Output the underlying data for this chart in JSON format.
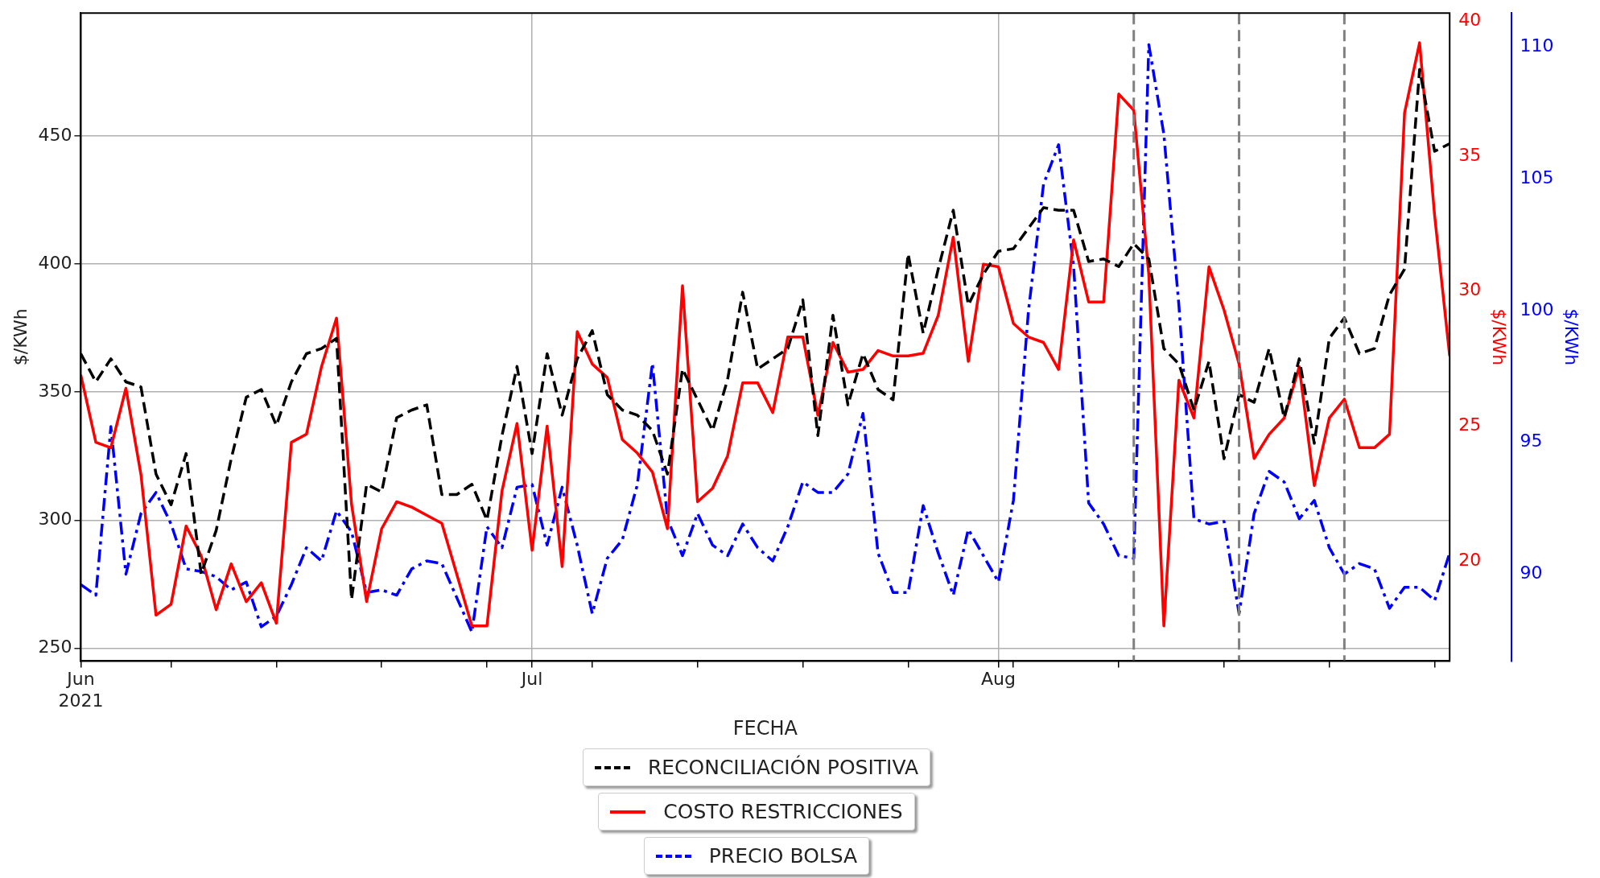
{
  "chart_data": {
    "type": "line",
    "xlabel": "FECHA",
    "ylabel": "$/KWh",
    "y2label": "$/KWh",
    "y3label": "$/KWh",
    "x": [
      "2021-06-01",
      "2021-06-02",
      "2021-06-03",
      "2021-06-04",
      "2021-06-05",
      "2021-06-06",
      "2021-06-07",
      "2021-06-08",
      "2021-06-09",
      "2021-06-10",
      "2021-06-11",
      "2021-06-12",
      "2021-06-13",
      "2021-06-14",
      "2021-06-15",
      "2021-06-16",
      "2021-06-17",
      "2021-06-18",
      "2021-06-19",
      "2021-06-20",
      "2021-06-21",
      "2021-06-22",
      "2021-06-23",
      "2021-06-24",
      "2021-06-25",
      "2021-06-26",
      "2021-06-27",
      "2021-06-28",
      "2021-06-29",
      "2021-06-30",
      "2021-07-01",
      "2021-07-02",
      "2021-07-03",
      "2021-07-04",
      "2021-07-05",
      "2021-07-06",
      "2021-07-07",
      "2021-07-08",
      "2021-07-09",
      "2021-07-10",
      "2021-07-11",
      "2021-07-12",
      "2021-07-13",
      "2021-07-14",
      "2021-07-15",
      "2021-07-16",
      "2021-07-17",
      "2021-07-18",
      "2021-07-19",
      "2021-07-20",
      "2021-07-21",
      "2021-07-22",
      "2021-07-23",
      "2021-07-24",
      "2021-07-25",
      "2021-07-26",
      "2021-07-27",
      "2021-07-28",
      "2021-07-29",
      "2021-07-30",
      "2021-07-31",
      "2021-08-01",
      "2021-08-02",
      "2021-08-03",
      "2021-08-04",
      "2021-08-05",
      "2021-08-06",
      "2021-08-07",
      "2021-08-08",
      "2021-08-09",
      "2021-08-10",
      "2021-08-11",
      "2021-08-12",
      "2021-08-13",
      "2021-08-14",
      "2021-08-15",
      "2021-08-16",
      "2021-08-17",
      "2021-08-18",
      "2021-08-19",
      "2021-08-20",
      "2021-08-21",
      "2021-08-22",
      "2021-08-23",
      "2021-08-24",
      "2021-08-25",
      "2021-08-26",
      "2021-08-27",
      "2021-08-28",
      "2021-08-29",
      "2021-08-30",
      "2021-08-31"
    ],
    "series": [
      {
        "name": "RECONCILIACIÓN POSITIVA",
        "color": "#000000",
        "line_style": "dashed",
        "values": [
          365,
          354,
          363,
          354,
          352,
          318,
          306,
          326,
          279,
          296,
          324,
          348,
          351,
          337,
          354,
          365,
          367,
          371,
          269,
          314,
          311,
          340,
          343,
          345,
          310,
          310,
          314,
          300,
          333,
          360,
          326,
          365,
          341,
          363,
          374,
          349,
          343,
          341,
          335,
          318,
          359,
          347,
          335,
          355,
          389,
          359,
          363,
          367,
          386,
          333,
          380,
          345,
          365,
          351,
          347,
          404,
          373,
          398,
          421,
          384,
          396,
          405,
          406,
          414,
          422,
          421,
          421,
          401,
          402,
          399,
          408,
          402,
          367,
          361,
          343,
          362,
          324,
          349,
          346,
          367,
          340,
          363,
          330,
          371,
          379,
          365,
          367,
          388,
          398,
          476,
          444,
          447
        ]
      },
      {
        "name": "COSTO RESTRICCIONES",
        "color": "#ff0000",
        "line_style": "solid",
        "axis": "y2",
        "values": [
          26.9,
          24.4,
          24.2,
          26.4,
          23.2,
          18.0,
          18.4,
          21.3,
          20.2,
          18.2,
          19.9,
          18.5,
          19.2,
          17.7,
          24.4,
          24.7,
          27.2,
          29.0,
          22.1,
          18.5,
          21.2,
          22.2,
          22.0,
          21.7,
          21.4,
          19.5,
          17.6,
          17.6,
          22.6,
          25.1,
          20.4,
          25.0,
          19.8,
          28.5,
          27.3,
          26.8,
          24.5,
          24.0,
          23.3,
          21.2,
          30.2,
          22.2,
          22.7,
          23.9,
          26.6,
          26.6,
          25.5,
          28.3,
          28.3,
          25.4,
          28.1,
          27.0,
          27.1,
          27.8,
          27.6,
          27.6,
          27.7,
          29.1,
          32.0,
          27.4,
          31.0,
          30.9,
          28.8,
          28.3,
          28.1,
          27.1,
          31.9,
          29.6,
          29.6,
          37.3,
          36.7,
          30.6,
          17.6,
          26.7,
          25.3,
          30.9,
          29.3,
          27.3,
          23.8,
          24.7,
          25.3,
          27.2,
          22.8,
          25.3,
          26.0,
          24.2,
          24.2,
          24.7,
          36.6,
          39.2,
          32.8,
          27.6
        ]
      },
      {
        "name": "PRECIO BOLSA",
        "color": "#0000ff",
        "line_style": "dashdot",
        "axis": "y3",
        "values": [
          89.6,
          89.2,
          95.6,
          90.0,
          92.3,
          93.1,
          91.9,
          90.2,
          90.1,
          89.9,
          89.4,
          89.7,
          88.0,
          88.4,
          89.6,
          91.0,
          90.5,
          92.4,
          91.6,
          89.3,
          89.4,
          89.2,
          90.2,
          90.5,
          90.4,
          89.1,
          87.8,
          91.8,
          91.0,
          93.3,
          93.4,
          91.1,
          93.3,
          91.1,
          88.5,
          90.6,
          91.3,
          93.4,
          98.0,
          92.1,
          90.7,
          92.3,
          91.1,
          90.7,
          91.9,
          91.0,
          90.5,
          91.8,
          93.5,
          93.1,
          93.1,
          93.8,
          96.1,
          90.8,
          89.3,
          89.3,
          92.6,
          90.8,
          89.2,
          91.7,
          90.7,
          89.7,
          92.8,
          100.0,
          104.8,
          106.3,
          101.7,
          92.7,
          91.9,
          90.7,
          90.6,
          110.1,
          106.7,
          100.2,
          92.1,
          91.9,
          92.0,
          88.5,
          92.3,
          93.9,
          93.5,
          92.1,
          92.8,
          91.0,
          90.0,
          90.4,
          90.2,
          88.7,
          89.5,
          89.5,
          89.0,
          90.8
        ]
      }
    ],
    "xlim": [
      "2021-06-01",
      "2021-08-31"
    ],
    "xticks": [
      {
        "value": "2021-06-01",
        "label": "Jun\n2021"
      },
      {
        "value": "2021-06-07",
        "label": null
      },
      {
        "value": "2021-06-14",
        "label": null
      },
      {
        "value": "2021-06-21",
        "label": null
      },
      {
        "value": "2021-06-28",
        "label": null
      },
      {
        "value": "2021-07-01",
        "label": "Jul"
      },
      {
        "value": "2021-07-05",
        "label": null
      },
      {
        "value": "2021-07-12",
        "label": null
      },
      {
        "value": "2021-07-19",
        "label": null
      },
      {
        "value": "2021-07-26",
        "label": null
      },
      {
        "value": "2021-08-01",
        "label": "Aug"
      },
      {
        "value": "2021-08-02",
        "label": null
      },
      {
        "value": "2021-08-09",
        "label": null
      },
      {
        "value": "2021-08-16",
        "label": null
      },
      {
        "value": "2021-08-23",
        "label": null
      },
      {
        "value": "2021-08-30",
        "label": null
      }
    ],
    "ylim": [
      245,
      498
    ],
    "yticks": [
      250,
      300,
      350,
      400,
      450
    ],
    "y2lim": [
      16.3,
      40.3
    ],
    "y2ticks": [
      20,
      25,
      30,
      35,
      40
    ],
    "y3lim": [
      86.7,
      111.3
    ],
    "y3ticks": [
      90,
      95,
      100,
      105,
      110
    ],
    "ref_lines": [
      {
        "axis": "x",
        "value": "2021-08-10",
        "color": "#808080",
        "line_style": "dashed"
      },
      {
        "axis": "x",
        "value": "2021-08-17",
        "color": "#808080",
        "line_style": "dashed"
      },
      {
        "axis": "x",
        "value": "2021-08-24",
        "color": "#808080",
        "line_style": "dashed"
      }
    ],
    "grid": true,
    "legend": "bottom",
    "marker": "none"
  }
}
